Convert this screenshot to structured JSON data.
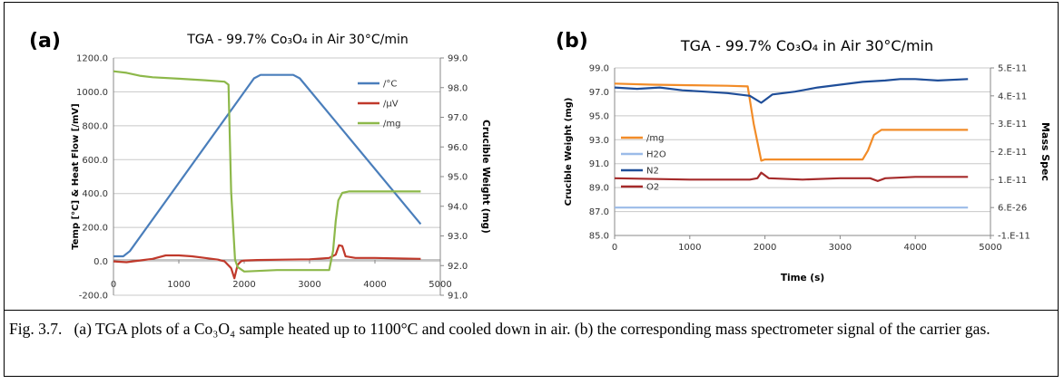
{
  "figure": {
    "caption_prefix": "Fig. 3.7.",
    "caption_text": "(a) TGA plots of a Co₃O₄ sample heated up to 1100°C and cooled down in air. (b) the corresponding mass spectrometer signal of the carrier gas."
  },
  "chart_data": [
    {
      "panel": "(a)",
      "type": "line",
      "title": "TGA -  99.7% Co₃O₄ in Air 30°C/min",
      "xlabel": "",
      "ylabel": "Temp [°C] & Heat Flow [/mV]",
      "y2label": "Crucible Weight (mg)",
      "xlim": [
        0,
        5000
      ],
      "ylim": [
        -200,
        1200
      ],
      "y2lim": [
        91,
        99
      ],
      "x_ticks": [
        "0",
        "1000",
        "2000",
        "3000",
        "4000",
        "5000"
      ],
      "y_ticks": [
        "-200.0",
        "0.0",
        "200.0",
        "400.0",
        "600.0",
        "800.0",
        "1000.0",
        "1200.0"
      ],
      "y2_ticks": [
        "91.0",
        "92.0",
        "93.0",
        "94.0",
        "95.0",
        "96.0",
        "97.0",
        "98.0",
        "99.0"
      ],
      "grid": true,
      "legend": "right",
      "series": [
        {
          "name": "/°C",
          "axis": "left",
          "color": "#4a7ebb",
          "x": [
            0,
            150,
            250,
            2150,
            2250,
            2750,
            2850,
            4700
          ],
          "y": [
            30,
            30,
            60,
            1080,
            1100,
            1100,
            1080,
            220
          ]
        },
        {
          "name": "/µV",
          "axis": "left",
          "color": "#c0392b",
          "x": [
            0,
            200,
            400,
            600,
            800,
            1000,
            1200,
            1400,
            1600,
            1700,
            1800,
            1850,
            1900,
            1950,
            2000,
            2200,
            2600,
            3000,
            3300,
            3400,
            3450,
            3500,
            3550,
            3700,
            4000,
            4700
          ],
          "y": [
            0,
            -5,
            5,
            15,
            35,
            35,
            30,
            20,
            10,
            0,
            -40,
            -100,
            -20,
            0,
            5,
            8,
            10,
            12,
            20,
            40,
            95,
            90,
            30,
            20,
            20,
            15
          ]
        },
        {
          "name": "/mg",
          "axis": "right",
          "color": "#8db84a",
          "x": [
            0,
            200,
            400,
            600,
            1000,
            1400,
            1700,
            1760,
            1800,
            1860,
            1900,
            2000,
            2500,
            3000,
            3300,
            3360,
            3400,
            3440,
            3500,
            3600,
            4700
          ],
          "y": [
            98.55,
            98.5,
            98.4,
            98.35,
            98.3,
            98.25,
            98.2,
            98.1,
            94.5,
            92.2,
            91.95,
            91.8,
            91.85,
            91.85,
            91.85,
            92.5,
            93.5,
            94.2,
            94.45,
            94.5,
            94.5
          ]
        }
      ]
    },
    {
      "panel": "(b)",
      "type": "line",
      "title": "TGA - 99.7% Co₃O₄ in Air 30°C/min",
      "xlabel": "Time (s)",
      "ylabel": "Crucible Weight (mg)",
      "y2label": "Mass Spec",
      "xlim": [
        0,
        5000
      ],
      "ylim": [
        85,
        100
      ],
      "y2lim": [
        -1e-11,
        5e-11
      ],
      "x_ticks": [
        "0",
        "1000",
        "2000",
        "3000",
        "4000",
        "5000"
      ],
      "y_ticks": [
        "85.0",
        "87.0",
        "89.0",
        "91.0",
        "93.0",
        "95.0",
        "97.0",
        "99.0"
      ],
      "y2_ticks": [
        "-1.E-11",
        "6.E-26",
        "1.E-11",
        "2.E-11",
        "3.E-11",
        "4.E-11",
        "5.E-11"
      ],
      "grid": true,
      "legend": "left",
      "series": [
        {
          "name": "/mg",
          "axis": "left",
          "color": "#f28c28",
          "x": [
            0,
            500,
            1000,
            1500,
            1770,
            1850,
            1950,
            2000,
            2500,
            3000,
            3300,
            3370,
            3450,
            3550,
            4000,
            4700
          ],
          "y": [
            98.6,
            98.5,
            98.45,
            98.4,
            98.35,
            95.0,
            91.7,
            91.8,
            91.8,
            91.8,
            91.8,
            92.6,
            94.0,
            94.45,
            94.45,
            94.45
          ]
        },
        {
          "name": "H2O",
          "axis": "right",
          "color": "#9bbbe8",
          "x": [
            0,
            4700
          ],
          "y": [
            0,
            0
          ]
        },
        {
          "name": "N2",
          "axis": "right",
          "color": "#1f4e99",
          "x": [
            0,
            300,
            600,
            900,
            1200,
            1500,
            1800,
            1950,
            2100,
            2400,
            2700,
            3000,
            3300,
            3600,
            3800,
            4000,
            4300,
            4700
          ],
          "y": [
            4.3e-11,
            4.25e-11,
            4.3e-11,
            4.2e-11,
            4.15e-11,
            4.1e-11,
            4e-11,
            3.75e-11,
            4.05e-11,
            4.15e-11,
            4.3e-11,
            4.4e-11,
            4.5e-11,
            4.55e-11,
            4.6e-11,
            4.6e-11,
            4.55e-11,
            4.6e-11
          ]
        },
        {
          "name": "O2",
          "axis": "right",
          "color": "#a52a2a",
          "x": [
            0,
            1000,
            1800,
            1900,
            1950,
            2050,
            2500,
            3000,
            3400,
            3500,
            3600,
            4000,
            4700
          ],
          "y": [
            1.05e-11,
            1e-11,
            1e-11,
            1.05e-11,
            1.25e-11,
            1.05e-11,
            1e-11,
            1.05e-11,
            1.05e-11,
            9.5e-12,
            1.05e-11,
            1.1e-11,
            1.1e-11
          ]
        }
      ]
    }
  ]
}
